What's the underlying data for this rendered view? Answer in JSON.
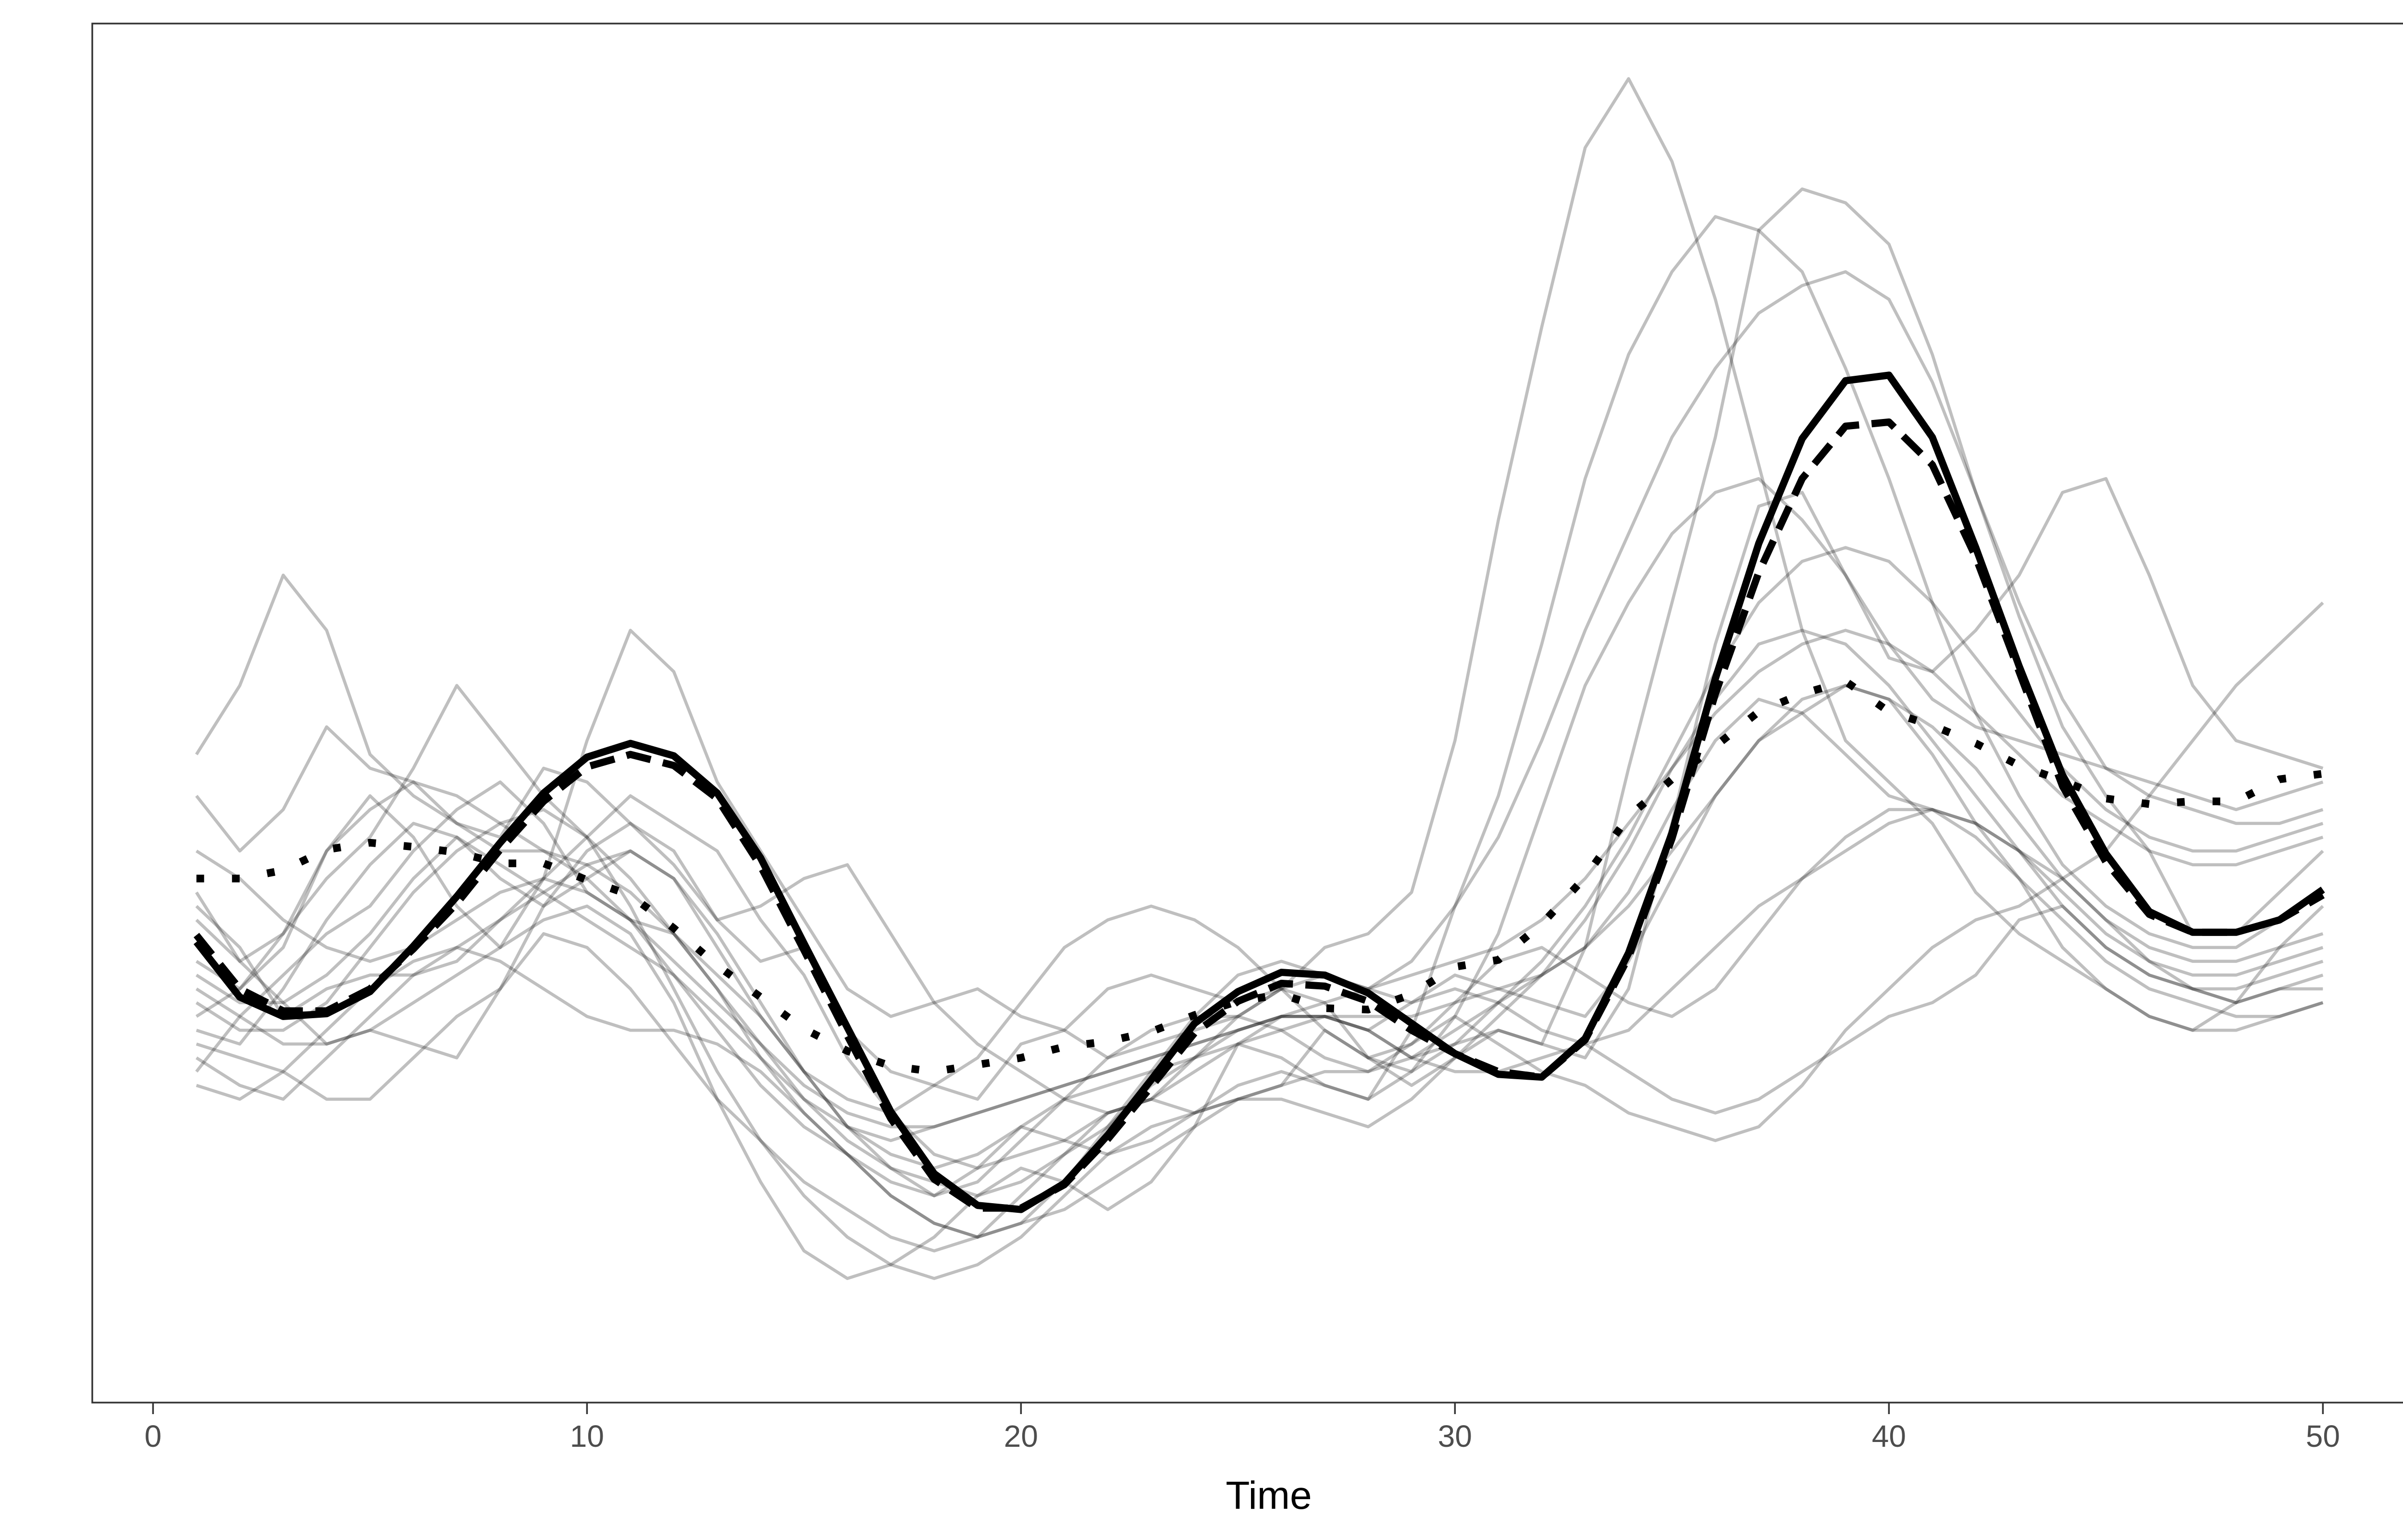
{
  "chart_data": {
    "type": "line",
    "title": "",
    "xlabel": "Time",
    "ylabel": "",
    "xlim": [
      -1.4,
      52.2
    ],
    "ylim": [
      0,
      100
    ],
    "x_ticks": [
      0,
      10,
      20,
      30,
      40,
      50
    ],
    "x_tick_labels": [
      "0",
      "10",
      "20",
      "30",
      "40",
      "50"
    ],
    "y_ticks": [],
    "grid": false,
    "legend": "none",
    "colors": {
      "individual": "#000000",
      "mean": "#000000",
      "frame": "#333333"
    },
    "x": [
      1,
      2,
      3,
      4,
      5,
      6,
      7,
      8,
      9,
      10,
      11,
      12,
      13,
      14,
      15,
      16,
      17,
      18,
      19,
      20,
      21,
      22,
      23,
      24,
      25,
      26,
      27,
      28,
      29,
      30,
      31,
      32,
      33,
      34,
      35,
      36,
      37,
      38,
      39,
      40,
      41,
      42,
      43,
      44,
      45,
      46,
      47,
      48,
      49,
      50
    ],
    "series": [
      {
        "style": "solid",
        "values": [
          33.4,
          29.4,
          28.0,
          28.2,
          29.8,
          33.1,
          36.7,
          40.6,
          44.2,
          46.8,
          47.8,
          46.9,
          44.2,
          39.5,
          33.3,
          27.2,
          21.1,
          16.6,
          14.3,
          14.0,
          15.9,
          19.4,
          23.4,
          27.5,
          29.8,
          31.2,
          31.0,
          29.7,
          27.5,
          25.3,
          23.8,
          23.6,
          26.4,
          32.6,
          41.3,
          52.5,
          62.3,
          69.9,
          74.1,
          74.5,
          70.0,
          62.0,
          53.4,
          45.5,
          39.8,
          35.6,
          34.1,
          34.1,
          35.0,
          37.2
        ]
      },
      {
        "style": "dashed",
        "values": [
          33.9,
          30.0,
          28.4,
          28.4,
          30.0,
          32.9,
          36.2,
          40.1,
          43.6,
          46.1,
          47.0,
          46.2,
          43.8,
          38.9,
          32.8,
          26.6,
          20.6,
          16.2,
          14.1,
          14.1,
          15.8,
          19.1,
          22.9,
          26.8,
          29.1,
          30.4,
          30.2,
          29.1,
          27.0,
          25.3,
          24.0,
          23.6,
          26.3,
          32.3,
          40.9,
          51.4,
          60.2,
          67.0,
          70.8,
          71.1,
          68.0,
          61.3,
          53.0,
          44.7,
          39.2,
          35.4,
          34.1,
          34.1,
          35.0,
          36.8
        ]
      },
      {
        "style": "dotted",
        "values": [
          38.0,
          38.0,
          38.6,
          40.1,
          40.6,
          40.3,
          39.9,
          39.1,
          39.1,
          37.9,
          36.8,
          34.4,
          31.7,
          29.4,
          27.1,
          25.5,
          24.4,
          24.0,
          24.5,
          25.0,
          25.8,
          26.2,
          26.9,
          28.1,
          29.1,
          29.6,
          28.6,
          28.5,
          29.6,
          31.6,
          32.1,
          34.7,
          38.1,
          42.5,
          45.2,
          47.6,
          50.1,
          51.4,
          52.3,
          50.1,
          49.1,
          47.8,
          46.2,
          45.1,
          43.8,
          43.4,
          43.6,
          43.6,
          45.2,
          45.6
        ]
      },
      {
        "style": "individual",
        "values": [
          36.0,
          33.0,
          28.0,
          30.0,
          31.0,
          31.0,
          32.0,
          35.0,
          38.0,
          41.0,
          44.0,
          42.0,
          40.0,
          35.0,
          31.0,
          25.0,
          21.0,
          18.0,
          17.0,
          18.0,
          19.0,
          21.0,
          22.0,
          21.0,
          22.0,
          23.0,
          27.0,
          25.0,
          24.0,
          26.0,
          27.0,
          26.0,
          33.0,
          46.0,
          58.0,
          70.0,
          85.0,
          88.0,
          87.0,
          84.0,
          76.0,
          66.0,
          57.0,
          49.0,
          44.0,
          40.0,
          34.0,
          34.0,
          37.0,
          40.0
        ]
      },
      {
        "style": "individual",
        "values": [
          47.0,
          52.0,
          60.0,
          56.0,
          47.0,
          44.0,
          42.0,
          41.0,
          46.0,
          45.0,
          42.0,
          40.0,
          35.0,
          32.0,
          33.0,
          27.0,
          24.0,
          23.0,
          22.0,
          26.0,
          27.0,
          30.0,
          31.0,
          30.0,
          29.0,
          30.0,
          33.0,
          34.0,
          37.0,
          48.0,
          64.0,
          78.0,
          91.0,
          96.0,
          90.0,
          80.0,
          68.0,
          56.0,
          48.0,
          45.0,
          42.0,
          37.0,
          34.0,
          32.0,
          30.0,
          28.0,
          27.0,
          29.0,
          33.0,
          36.0
        ]
      },
      {
        "style": "individual",
        "values": [
          32.0,
          30.0,
          33.0,
          40.0,
          44.0,
          41.0,
          36.0,
          33.0,
          38.0,
          48.0,
          56.0,
          53.0,
          45.0,
          40.0,
          35.0,
          30.0,
          28.0,
          29.0,
          30.0,
          28.0,
          27.0,
          25.0,
          26.0,
          27.0,
          28.0,
          30.0,
          29.0,
          25.0,
          23.0,
          25.0,
          27.0,
          26.0,
          25.0,
          30.0,
          42.0,
          55.0,
          65.0,
          66.0,
          60.0,
          54.0,
          53.0,
          56.0,
          60.0,
          66.0,
          67.0,
          60.0,
          52.0,
          48.0,
          47.0,
          46.0
        ]
      },
      {
        "style": "individual",
        "values": [
          25.0,
          23.0,
          22.0,
          25.0,
          28.0,
          31.0,
          33.0,
          35.0,
          37.0,
          39.0,
          40.0,
          38.0,
          33.0,
          28.0,
          24.0,
          22.0,
          21.0,
          23.0,
          25.0,
          29.0,
          33.0,
          35.0,
          36.0,
          35.0,
          33.0,
          30.0,
          27.0,
          25.0,
          26.0,
          28.0,
          26.0,
          24.0,
          23.0,
          21.0,
          20.0,
          19.0,
          20.0,
          23.0,
          27.0,
          30.0,
          33.0,
          35.0,
          36.0,
          38.0,
          40.0,
          44.0,
          48.0,
          52.0,
          55.0,
          58.0
        ]
      },
      {
        "style": "individual",
        "values": [
          24.0,
          28.0,
          31.0,
          34.0,
          36.0,
          40.0,
          43.0,
          45.0,
          42.0,
          37.0,
          35.0,
          34.0,
          31.0,
          28.0,
          24.0,
          20.0,
          18.0,
          17.0,
          18.0,
          20.0,
          19.0,
          18.0,
          19.0,
          21.0,
          23.0,
          24.0,
          23.0,
          22.0,
          24.0,
          28.0,
          34.0,
          43.0,
          52.0,
          58.0,
          63.0,
          66.0,
          67.0,
          64.0,
          60.0,
          55.0,
          51.0,
          49.0,
          48.0,
          47.0,
          46.0,
          45.0,
          44.0,
          43.0,
          44.0,
          45.0
        ]
      },
      {
        "style": "individual",
        "values": [
          30.0,
          28.0,
          26.0,
          26.0,
          27.0,
          26.0,
          25.0,
          30.0,
          36.0,
          40.0,
          42.0,
          39.0,
          35.0,
          36.0,
          38.0,
          39.0,
          34.0,
          29.0,
          26.0,
          24.0,
          22.0,
          21.0,
          22.0,
          25.0,
          26.0,
          25.0,
          23.0,
          22.0,
          27.0,
          36.0,
          44.0,
          55.0,
          67.0,
          76.0,
          82.0,
          86.0,
          85.0,
          82.0,
          75.0,
          67.0,
          58.0,
          50.0,
          44.0,
          39.0,
          36.0,
          34.0,
          33.0,
          33.0,
          35.0,
          37.0
        ]
      },
      {
        "style": "individual",
        "values": [
          28.0,
          30.0,
          34.0,
          38.0,
          41.0,
          46.0,
          52.0,
          48.0,
          44.0,
          41.0,
          38.0,
          34.0,
          30.0,
          26.0,
          22.0,
          19.0,
          17.0,
          16.0,
          15.0,
          16.0,
          18.0,
          20.0,
          23.0,
          25.0,
          27.0,
          28.0,
          28.0,
          27.0,
          29.0,
          31.0,
          30.0,
          29.0,
          28.0,
          32.0,
          38.0,
          44.0,
          48.0,
          50.0,
          52.0,
          51.0,
          47.0,
          42.0,
          38.0,
          33.0,
          30.0,
          28.0,
          27.0,
          27.0,
          28.0,
          29.0
        ]
      },
      {
        "style": "individual",
        "values": [
          44.0,
          40.0,
          43.0,
          49.0,
          46.0,
          45.0,
          42.0,
          40.0,
          40.0,
          38.0,
          35.0,
          31.0,
          27.0,
          23.0,
          20.0,
          18.0,
          15.0,
          13.0,
          12.0,
          13.0,
          16.0,
          20.0,
          24.0,
          28.0,
          31.0,
          32.0,
          31.0,
          30.0,
          32.0,
          36.0,
          41.0,
          48.0,
          56.0,
          63.0,
          70.0,
          75.0,
          79.0,
          81.0,
          82.0,
          80.0,
          74.0,
          66.0,
          58.0,
          51.0,
          46.0,
          44.0,
          43.0,
          42.0,
          42.0,
          43.0
        ]
      },
      {
        "style": "individual",
        "values": [
          37.0,
          32.0,
          29.0,
          26.0,
          27.0,
          29.0,
          31.0,
          33.0,
          35.0,
          36.0,
          34.0,
          29.0,
          22.0,
          16.0,
          11.0,
          9.0,
          10.0,
          12.0,
          15.0,
          17.0,
          16.0,
          14.0,
          16.0,
          20.0,
          26.0,
          28.0,
          28.0,
          27.0,
          25.0,
          26.0,
          29.0,
          31.0,
          33.0,
          37.0,
          43.0,
          48.0,
          51.0,
          50.0,
          47.0,
          44.0,
          43.0,
          42.0,
          40.0,
          38.0,
          35.0,
          32.0,
          30.0,
          29.0,
          30.0,
          31.0
        ]
      },
      {
        "style": "individual",
        "values": [
          26.0,
          25.0,
          24.0,
          22.0,
          22.0,
          25.0,
          28.0,
          30.0,
          34.0,
          33.0,
          30.0,
          26.0,
          22.0,
          19.0,
          16.0,
          14.0,
          12.0,
          11.0,
          12.0,
          15.0,
          18.0,
          21.0,
          22.0,
          24.0,
          26.0,
          27.0,
          28.0,
          27.0,
          25.0,
          24.0,
          24.0,
          25.0,
          26.0,
          24.0,
          22.0,
          21.0,
          22.0,
          24.0,
          26.0,
          28.0,
          29.0,
          31.0,
          35.0,
          36.0,
          33.0,
          31.0,
          30.0,
          29.0,
          30.0,
          30.0
        ]
      },
      {
        "style": "individual",
        "values": [
          35.0,
          32.0,
          34.0,
          40.0,
          43.0,
          45.0,
          44.0,
          42.0,
          40.0,
          39.0,
          37.0,
          34.0,
          30.0,
          25.0,
          21.0,
          18.0,
          16.0,
          15.0,
          17.0,
          20.0,
          22.0,
          23.0,
          24.0,
          25.0,
          28.0,
          30.0,
          31.0,
          30.0,
          29.0,
          30.0,
          29.0,
          27.0,
          26.0,
          27.0,
          30.0,
          33.0,
          36.0,
          38.0,
          40.0,
          42.0,
          43.0,
          42.0,
          40.0,
          37.0,
          34.0,
          32.0,
          31.0,
          31.0,
          32.0,
          33.0
        ]
      },
      {
        "style": "individual",
        "values": [
          29.0,
          27.0,
          27.0,
          29.0,
          33.0,
          37.0,
          40.0,
          42.0,
          43.0,
          41.0,
          36.0,
          30.0,
          24.0,
          19.0,
          15.0,
          12.0,
          10.0,
          9.0,
          10.0,
          12.0,
          15.0,
          18.0,
          20.0,
          21.0,
          22.0,
          22.0,
          21.0,
          20.0,
          22.0,
          25.0,
          28.0,
          31.0,
          35.0,
          40.0,
          46.0,
          51.0,
          55.0,
          56.0,
          55.0,
          52.0,
          48.0,
          44.0,
          40.0,
          36.0,
          33.0,
          31.0,
          30.0,
          30.0,
          31.0,
          32.0
        ]
      },
      {
        "style": "individual",
        "values": [
          31.0,
          29.0,
          29.0,
          31.0,
          34.0,
          38.0,
          41.0,
          39.0,
          37.0,
          35.0,
          33.0,
          31.0,
          28.0,
          25.0,
          22.0,
          20.0,
          19.0,
          20.0,
          21.0,
          22.0,
          23.0,
          24.0,
          25.0,
          26.0,
          27.0,
          28.0,
          28.0,
          28.0,
          28.0,
          29.0,
          30.0,
          31.0,
          33.0,
          36.0,
          40.0,
          44.0,
          48.0,
          51.0,
          52.0,
          51.0,
          49.0,
          46.0,
          42.0,
          38.0,
          35.0,
          33.0,
          32.0,
          32.0,
          33.0,
          34.0
        ]
      },
      {
        "style": "individual",
        "values": [
          27.0,
          26.0,
          30.0,
          35.0,
          39.0,
          42.0,
          41.0,
          38.0,
          36.0,
          38.0,
          40.0,
          38.0,
          34.0,
          29.0,
          24.0,
          20.0,
          17.0,
          15.0,
          16.0,
          19.0,
          22.0,
          25.0,
          27.0,
          28.0,
          28.0,
          27.0,
          25.0,
          24.0,
          26.0,
          29.0,
          32.0,
          33.0,
          31.0,
          29.0,
          28.0,
          30.0,
          34.0,
          38.0,
          41.0,
          43.0,
          43.0,
          41.0,
          38.0,
          35.0,
          32.0,
          30.0,
          29.0,
          28.0,
          28.0,
          29.0
        ]
      },
      {
        "style": "individual",
        "values": [
          40.0,
          38.0,
          35.0,
          33.0,
          32.0,
          33.0,
          35.0,
          37.0,
          38.0,
          37.0,
          35.0,
          32.0,
          29.0,
          26.0,
          23.0,
          21.0,
          20.0,
          20.0,
          21.0,
          22.0,
          23.0,
          24.0,
          25.0,
          26.0,
          27.0,
          28.0,
          29.0,
          30.0,
          31.0,
          32.0,
          33.0,
          35.0,
          38.0,
          42.0,
          46.0,
          50.0,
          53.0,
          55.0,
          56.0,
          55.0,
          53.0,
          50.0,
          47.0,
          44.0,
          42.0,
          40.0,
          39.0,
          39.0,
          40.0,
          41.0
        ]
      },
      {
        "style": "individual",
        "values": [
          23.0,
          22.0,
          24.0,
          27.0,
          30.0,
          32.0,
          33.0,
          32.0,
          30.0,
          28.0,
          27.0,
          27.0,
          26.0,
          24.0,
          21.0,
          18.0,
          15.0,
          13.0,
          12.0,
          13.0,
          14.0,
          16.0,
          18.0,
          20.0,
          22.0,
          23.0,
          24.0,
          24.0,
          25.0,
          27.0,
          29.0,
          32.0,
          36.0,
          41.0,
          47.0,
          53.0,
          58.0,
          61.0,
          62.0,
          61.0,
          58.0,
          54.0,
          50.0,
          46.0,
          43.0,
          41.0,
          40.0,
          40.0,
          41.0,
          42.0
        ]
      }
    ]
  }
}
